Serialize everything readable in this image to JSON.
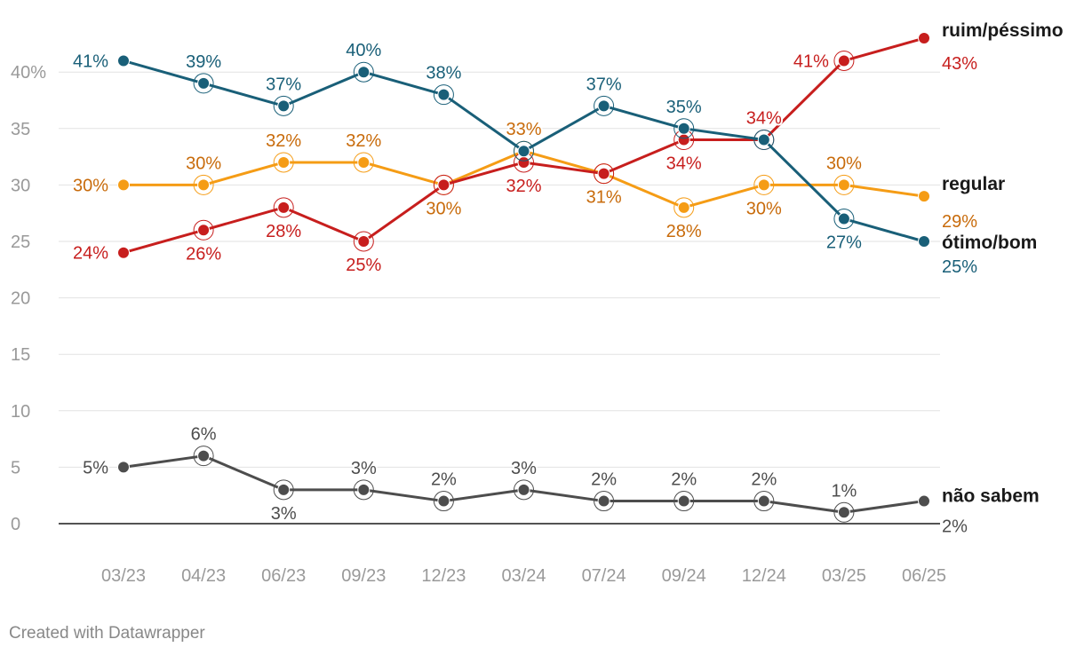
{
  "chart_data": {
    "type": "line",
    "categories": [
      "03/23",
      "04/23",
      "06/23",
      "09/23",
      "12/23",
      "03/24",
      "07/24",
      "09/24",
      "12/24",
      "03/25",
      "06/25"
    ],
    "ylim": [
      0,
      43
    ],
    "yticks": [
      0,
      5,
      10,
      15,
      20,
      25,
      30,
      35,
      40
    ],
    "ytick_labels": [
      "0",
      "5",
      "10",
      "15",
      "20",
      "25",
      "30",
      "35",
      "40%"
    ],
    "grid": true,
    "series": [
      {
        "name": "ótimo/bom",
        "color": "#195f78",
        "label_color": "#195f78",
        "values": [
          41,
          39,
          37,
          40,
          38,
          33,
          37,
          35,
          34,
          27,
          25
        ],
        "labels": [
          "41%",
          "39%",
          "37%",
          "40%",
          "38%",
          "",
          "37%",
          "35%",
          "",
          "27%",
          "25%"
        ]
      },
      {
        "name": "regular",
        "color": "#f59c15",
        "label_color": "#c86b0b",
        "values": [
          30,
          30,
          32,
          32,
          30,
          33,
          31,
          28,
          30,
          30,
          29
        ],
        "labels": [
          "30%",
          "30%",
          "32%",
          "32%",
          "30%",
          "33%",
          "31%",
          "28%",
          "30%",
          "30%",
          "29%"
        ]
      },
      {
        "name": "ruim/péssimo",
        "color": "#c71e1d",
        "label_color": "#c71e1d",
        "values": [
          24,
          26,
          28,
          25,
          30,
          32,
          31,
          34,
          34,
          41,
          43
        ],
        "labels": [
          "24%",
          "26%",
          "28%",
          "25%",
          "",
          "32%",
          "",
          "34%",
          "34%",
          "41%",
          "43%"
        ]
      },
      {
        "name": "não sabem",
        "color": "#4d4d4d",
        "label_color": "#4d4d4d",
        "values": [
          5,
          6,
          3,
          3,
          2,
          3,
          2,
          2,
          2,
          1,
          2
        ],
        "labels": [
          "5%",
          "6%",
          "3%",
          "3%",
          "2%",
          "3%",
          "2%",
          "2%",
          "2%",
          "1%",
          "2%"
        ]
      }
    ]
  },
  "footer": {
    "credit": "Created with Datawrapper"
  }
}
